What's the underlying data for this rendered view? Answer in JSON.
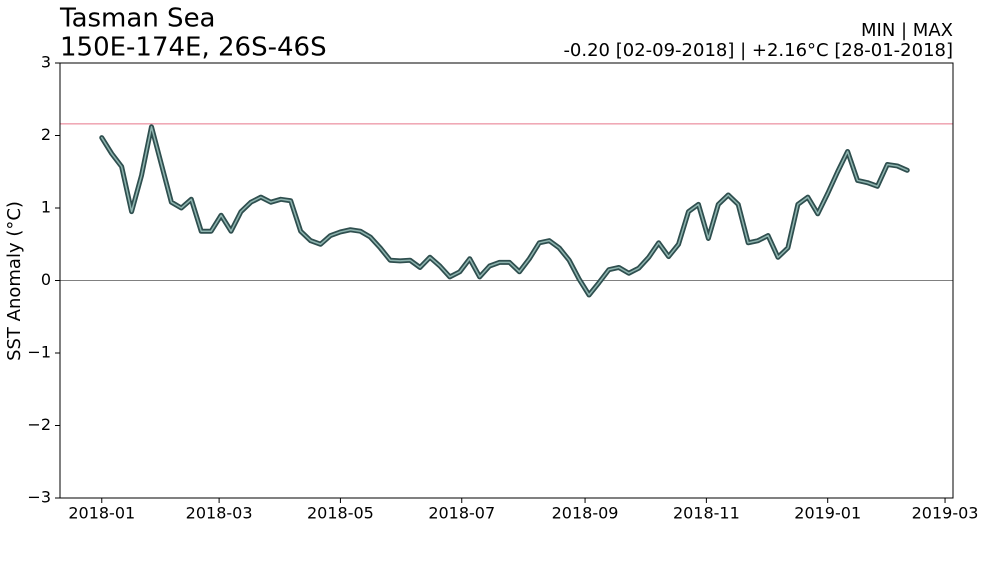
{
  "chart_data": {
    "type": "line",
    "title": "Tasman Sea",
    "subtitle": "150E-174E, 26S-46S",
    "stats_heading": "MIN | MAX",
    "stats": "-0.20 [02-09-2018] | +2.16°C [28-01-2018]",
    "ylabel": "SST Anomaly (°C)",
    "x": [
      "2018-01-01",
      "2018-01-06",
      "2018-01-11",
      "2018-01-16",
      "2018-01-21",
      "2018-01-26",
      "2018-01-31",
      "2018-02-05",
      "2018-02-10",
      "2018-02-15",
      "2018-02-20",
      "2018-02-25",
      "2018-03-02",
      "2018-03-07",
      "2018-03-12",
      "2018-03-17",
      "2018-03-22",
      "2018-03-27",
      "2018-04-01",
      "2018-04-06",
      "2018-04-11",
      "2018-04-16",
      "2018-04-21",
      "2018-04-26",
      "2018-05-01",
      "2018-05-06",
      "2018-05-11",
      "2018-05-16",
      "2018-05-21",
      "2018-05-26",
      "2018-05-31",
      "2018-06-05",
      "2018-06-10",
      "2018-06-15",
      "2018-06-20",
      "2018-06-25",
      "2018-06-30",
      "2018-07-05",
      "2018-07-10",
      "2018-07-15",
      "2018-07-20",
      "2018-07-25",
      "2018-07-30",
      "2018-08-04",
      "2018-08-09",
      "2018-08-14",
      "2018-08-19",
      "2018-08-24",
      "2018-08-29",
      "2018-09-03",
      "2018-09-08",
      "2018-09-13",
      "2018-09-18",
      "2018-09-23",
      "2018-09-28",
      "2018-10-03",
      "2018-10-08",
      "2018-10-13",
      "2018-10-18",
      "2018-10-23",
      "2018-10-28",
      "2018-11-02",
      "2018-11-07",
      "2018-11-12",
      "2018-11-17",
      "2018-11-22",
      "2018-11-27",
      "2018-12-02",
      "2018-12-07",
      "2018-12-12",
      "2018-12-17",
      "2018-12-22",
      "2018-12-27",
      "2019-01-01",
      "2019-01-06",
      "2019-01-11",
      "2019-01-16",
      "2019-01-21",
      "2019-01-26",
      "2019-01-31",
      "2019-02-05",
      "2019-02-10"
    ],
    "series": [
      {
        "color": "#2f4f4f",
        "inner_color": "#8fb5b0",
        "values": [
          1.97,
          1.75,
          1.57,
          0.95,
          1.45,
          2.12,
          1.6,
          1.08,
          1.0,
          1.12,
          0.68,
          0.68,
          0.9,
          0.68,
          0.95,
          1.08,
          1.15,
          1.08,
          1.12,
          1.1,
          0.68,
          0.55,
          0.5,
          0.62,
          0.67,
          0.7,
          0.68,
          0.6,
          0.45,
          0.28,
          0.27,
          0.28,
          0.18,
          0.32,
          0.2,
          0.05,
          0.12,
          0.3,
          0.05,
          0.2,
          0.25,
          0.25,
          0.12,
          0.3,
          0.52,
          0.55,
          0.45,
          0.28,
          0.02,
          -0.2,
          -0.03,
          0.15,
          0.18,
          0.1,
          0.17,
          0.32,
          0.52,
          0.33,
          0.5,
          0.95,
          1.05,
          0.58,
          1.05,
          1.18,
          1.05,
          0.52,
          0.55,
          0.62,
          0.32,
          0.45,
          1.05,
          1.15,
          0.92,
          1.2,
          1.5,
          1.78,
          1.38,
          1.35,
          1.3,
          1.6,
          1.58,
          1.52
        ]
      }
    ],
    "xlim": [
      "2017-12-11",
      "2019-03-05"
    ],
    "xticks": [
      {
        "value": "2018-01-01",
        "label": "2018-01"
      },
      {
        "value": "2018-03-01",
        "label": "2018-03"
      },
      {
        "value": "2018-05-01",
        "label": "2018-05"
      },
      {
        "value": "2018-07-01",
        "label": "2018-07"
      },
      {
        "value": "2018-09-01",
        "label": "2018-09"
      },
      {
        "value": "2018-11-01",
        "label": "2018-11"
      },
      {
        "value": "2019-01-01",
        "label": "2019-01"
      },
      {
        "value": "2019-03-01",
        "label": "2019-03"
      }
    ],
    "ylim": [
      -3,
      3
    ],
    "yticks": [
      {
        "value": -3,
        "label": "−3"
      },
      {
        "value": -2,
        "label": "−2"
      },
      {
        "value": -1,
        "label": "−1"
      },
      0,
      1,
      2,
      3
    ],
    "reference_lines": [
      {
        "value": 2.16,
        "color": "#e8768a"
      },
      {
        "value": 0,
        "color": "#808080"
      }
    ]
  }
}
